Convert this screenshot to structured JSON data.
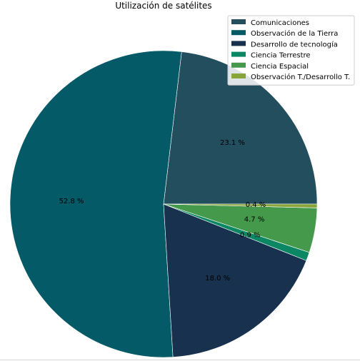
{
  "chart_data": {
    "type": "pie",
    "title": "Utilización de satélites",
    "legend_position": "top-right",
    "slices": [
      {
        "name": "Comunicaciones",
        "value": 23.1,
        "label": "23.1 %",
        "color": "#234e5e"
      },
      {
        "name": "Observación de la Tierra",
        "value": 52.8,
        "label": "52.8 %",
        "color": "#045a66"
      },
      {
        "name": "Desarrollo de tecnología",
        "value": 18.0,
        "label": "18.0 %",
        "color": "#17314e"
      },
      {
        "name": "Ciencia Terrestre",
        "value": 0.9,
        "label": "0.9 %",
        "color": "#0b8764"
      },
      {
        "name": "Ciencia Espacial",
        "value": 4.7,
        "label": "4.7 %",
        "color": "#449a4a"
      },
      {
        "name": "Observación T./Desarrollo T.",
        "value": 0.4,
        "label": "0.4 %",
        "color": "#89a53a"
      }
    ]
  }
}
